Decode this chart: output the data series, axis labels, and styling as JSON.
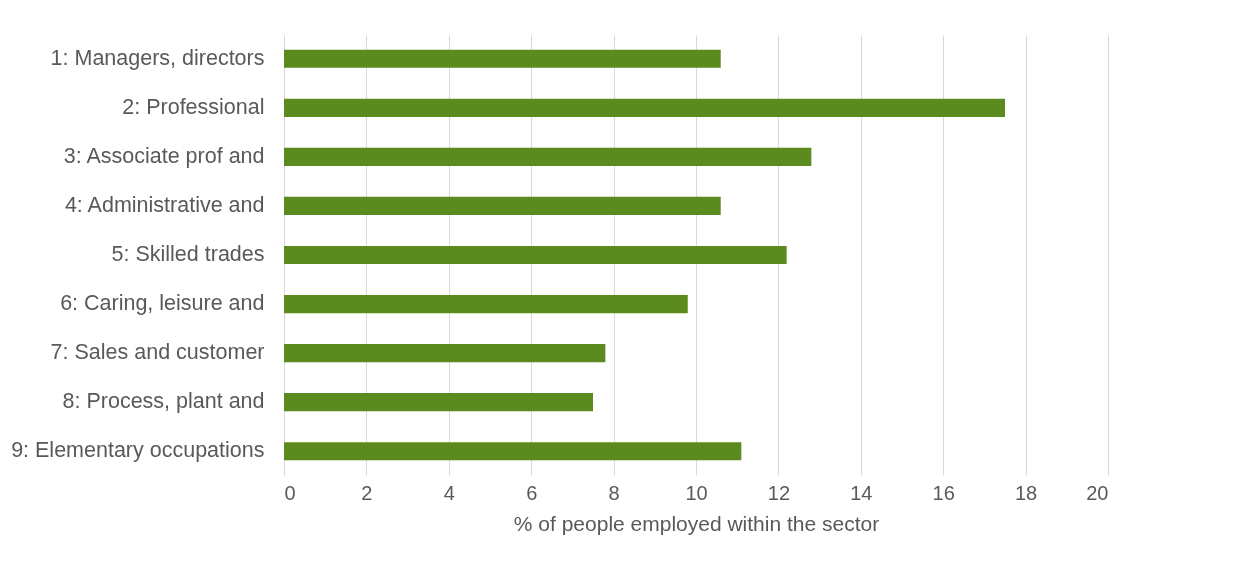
{
  "chart_data": {
    "type": "bar",
    "orientation": "horizontal",
    "xlabel": "% of people employed within the sector",
    "categories": [
      "1: Managers, directors",
      "2: Professional",
      "3: Associate prof and",
      "4: Administrative and",
      "5: Skilled trades",
      "6: Caring, leisure and",
      "7: Sales and customer",
      "8: Process, plant and",
      "9: Elementary occupations"
    ],
    "values": [
      10.6,
      17.5,
      12.8,
      10.6,
      12.2,
      9.8,
      7.8,
      7.5,
      11.1
    ],
    "color": "#5b8a1e",
    "xlim": [
      0,
      20
    ],
    "xticks": [
      0,
      2,
      4,
      6,
      8,
      10,
      12,
      14,
      16,
      18,
      20
    ],
    "grid": "x"
  }
}
